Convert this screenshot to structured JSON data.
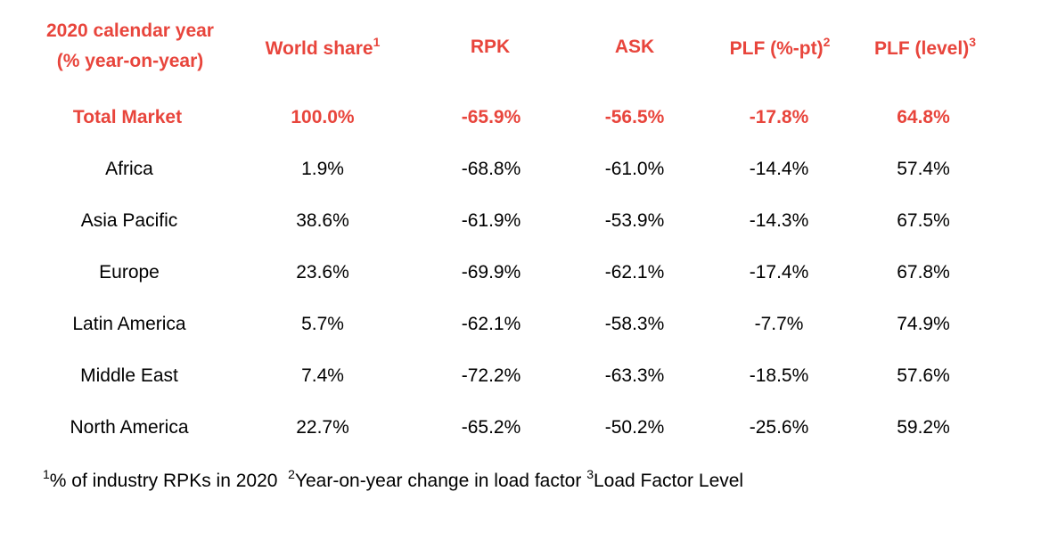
{
  "header": {
    "col1_line1": "2020 calendar year",
    "col1_line2": "(% year-on-year)",
    "world_share": "World share",
    "world_share_note": "1",
    "rpk": "RPK",
    "ask": "ASK",
    "plf_pt": "PLF (%-pt)",
    "plf_pt_note": "2",
    "plf_level": "PLF (level)",
    "plf_level_note": "3"
  },
  "rows": [
    {
      "region": "Total Market",
      "world_share": "100.0%",
      "rpk": "-65.9%",
      "ask": "-56.5%",
      "plf_pt": "-17.8%",
      "plf_level": "64.8%"
    },
    {
      "region": "Africa",
      "world_share": "1.9%",
      "rpk": "-68.8%",
      "ask": "-61.0%",
      "plf_pt": "-14.4%",
      "plf_level": "57.4%"
    },
    {
      "region": "Asia Pacific",
      "world_share": "38.6%",
      "rpk": "-61.9%",
      "ask": "-53.9%",
      "plf_pt": "-14.3%",
      "plf_level": "67.5%"
    },
    {
      "region": "Europe",
      "world_share": "23.6%",
      "rpk": "-69.9%",
      "ask": "-62.1%",
      "plf_pt": "-17.4%",
      "plf_level": "67.8%"
    },
    {
      "region": "Latin America",
      "world_share": "5.7%",
      "rpk": "-62.1%",
      "ask": "-58.3%",
      "plf_pt": "-7.7%",
      "plf_level": "74.9%"
    },
    {
      "region": "Middle East",
      "world_share": "7.4%",
      "rpk": "-72.2%",
      "ask": "-63.3%",
      "plf_pt": "-18.5%",
      "plf_level": "57.6%"
    },
    {
      "region": "North America",
      "world_share": "22.7%",
      "rpk": "-65.2%",
      "ask": "-50.2%",
      "plf_pt": "-25.6%",
      "plf_level": "59.2%"
    }
  ],
  "footnotes": {
    "n1_mark": "1",
    "n1_text": "% of industry RPKs in 2020",
    "n2_mark": "2",
    "n2_text": "Year-on-year change in load factor",
    "n3_mark": "3",
    "n3_text": "Load Factor Level"
  },
  "colors": {
    "accent": "#e8453c",
    "text": "#000000"
  }
}
